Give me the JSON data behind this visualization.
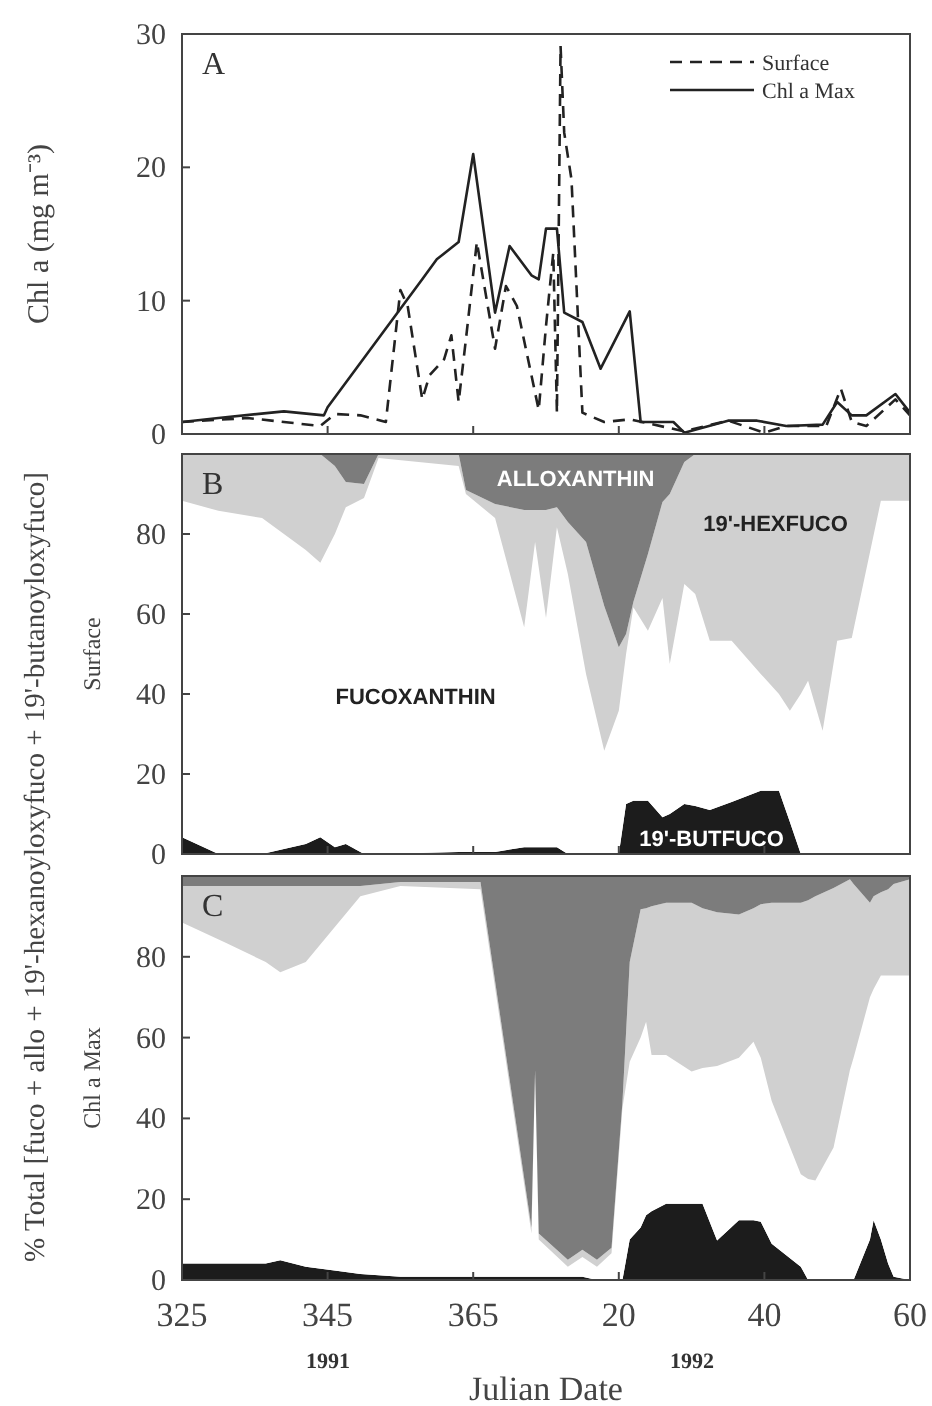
{
  "chart_data": [
    {
      "type": "line",
      "title": "A",
      "ylabel": "Chl a (mg m⁻³)",
      "xlim": [
        "1991-11-21",
        "1992-02-29"
      ],
      "xticks": [
        {
          "value": "1991-11-21",
          "label": null
        },
        {
          "value": "1991-12-11",
          "label": null
        },
        {
          "value": "1991-12-31",
          "label": null
        },
        {
          "value": "1992-01-20",
          "label": null
        },
        {
          "value": "1992-02-09",
          "label": null
        },
        {
          "value": "1992-02-29",
          "label": null
        }
      ],
      "ylim": [
        0,
        30
      ],
      "yticks": [
        0,
        10,
        20,
        30
      ],
      "tick_labels": "y",
      "legend": "top right",
      "series": [
        {
          "name": "Surface",
          "color": "#222222",
          "line_style": "dashed",
          "x": [
            "1991-11-21",
            "1991-11-30",
            "1991-12-05",
            "1991-12-10",
            "1991-12-12",
            "1991-12-15T12:00",
            "1991-12-19",
            "1991-12-21",
            "1991-12-22",
            "1991-12-24",
            "1991-12-25",
            "1991-12-27",
            "1991-12-28",
            "1991-12-29",
            "1991-12-30",
            "1991-12-31T12:00",
            "1992-01-03",
            "1992-01-04T12:00",
            "1992-01-06",
            "1992-01-09",
            "1992-01-10",
            "1992-01-11",
            "1992-01-11T12:00",
            "1992-01-12",
            "1992-01-12T12:00",
            "1992-01-13T12:00",
            "1992-01-15",
            "1992-01-18",
            "1992-01-21T12:00",
            "1992-01-29",
            "1992-02-04",
            "1992-02-09",
            "1992-02-12",
            "1992-02-17T12:00",
            "1992-02-19T12:00",
            "1992-02-21",
            "1992-02-23",
            "1992-02-27",
            "1992-02-29"
          ],
          "values": [
            0.9,
            1.2,
            0.9,
            0.6,
            1.5,
            1.4,
            0.9,
            10.8,
            9.6,
            2.6,
            4.4,
            5.6,
            7.4,
            2.4,
            7.1,
            14.4,
            6.4,
            11.1,
            9.6,
            1.8,
            8.1,
            13.6,
            1.6,
            29.1,
            22.6,
            19.1,
            1.6,
            0.9,
            1.1,
            0.2,
            1.0,
            0.1,
            0.6,
            0.6,
            3.4,
            0.9,
            0.6,
            2.6,
            1.4
          ]
        },
        {
          "name": "Chl a Max",
          "color": "#222222",
          "line_style": "solid",
          "x": [
            "1991-11-21",
            "1991-11-26",
            "1991-12-05",
            "1991-12-10T12:00",
            "1991-12-11",
            "1991-12-24",
            "1991-12-26",
            "1991-12-29",
            "1991-12-31",
            "1992-01-03",
            "1992-01-05",
            "1992-01-08",
            "1992-01-09",
            "1992-01-10",
            "1992-01-11T12:00",
            "1992-01-12T12:00",
            "1992-01-15",
            "1992-01-17T12:00",
            "1992-01-21T12:00",
            "1992-01-23",
            "1992-01-27T12:00",
            "1992-01-29",
            "1992-02-04",
            "1992-02-08",
            "1992-02-12",
            "1992-02-17",
            "1992-02-19",
            "1992-02-21",
            "1992-02-23",
            "1992-02-27",
            "1992-02-29"
          ],
          "values": [
            0.9,
            1.2,
            1.7,
            1.4,
            2.0,
            11.6,
            13.1,
            14.4,
            21,
            9.1,
            14.1,
            11.9,
            11.6,
            15.4,
            15.4,
            9.1,
            8.4,
            4.9,
            9.2,
            0.9,
            0.9,
            0.1,
            1.0,
            1.0,
            0.6,
            0.7,
            2.4,
            1.4,
            1.4,
            3.0,
            1.6
          ]
        }
      ]
    },
    {
      "type": "area",
      "stacked": true,
      "title": "B",
      "ylabel": "Surface",
      "xlim": [
        "1991-11-21",
        "1992-02-29"
      ],
      "xticks": [
        {
          "value": "1991-11-21",
          "label": null
        },
        {
          "value": "1991-12-11",
          "label": null
        },
        {
          "value": "1991-12-31",
          "label": null
        },
        {
          "value": "1992-01-20",
          "label": null
        },
        {
          "value": "1992-02-09",
          "label": null
        },
        {
          "value": "1992-02-29",
          "label": null
        }
      ],
      "ylim": [
        0,
        100
      ],
      "yticks": [
        0,
        20,
        40,
        60,
        80
      ],
      "tick_labels": "y",
      "x": [
        "1991-11-21",
        "1991-11-26",
        "1991-12-02",
        "1991-12-08",
        "1991-12-10",
        "1991-12-12",
        "1991-12-13T12:00",
        "1991-12-16",
        "1991-12-18",
        "1991-12-29",
        "1991-12-30",
        "1992-01-03",
        "1992-01-07",
        "1992-01-08T12:00",
        "1992-01-10",
        "1992-01-11T12:00",
        "1992-01-13",
        "1992-01-15T12:00",
        "1992-01-18",
        "1992-01-20",
        "1992-01-21",
        "1992-01-22",
        "1992-01-24",
        "1992-01-26",
        "1992-01-27",
        "1992-01-29",
        "1992-01-30T12:00",
        "1992-02-01T12:00",
        "1992-02-04T12:00",
        "1992-02-08T12:00",
        "1992-02-11",
        "1992-02-12T12:00",
        "1992-02-14",
        "1992-02-15",
        "1992-02-17",
        "1992-02-19",
        "1992-02-21",
        "1992-02-25",
        "1992-02-29"
      ],
      "series": [
        {
          "name": "19'-BUTFUCO",
          "color": "#1c1c1c",
          "values": [
            4.2,
            0,
            0,
            2.5,
            4.2,
            1.7,
            2.5,
            0,
            0,
            0.5,
            0.5,
            0.5,
            1.7,
            1.7,
            1.7,
            1.7,
            0,
            0,
            0,
            0,
            12.5,
            13.3,
            13.3,
            9.2,
            10,
            12.5,
            12,
            11,
            13,
            15.8,
            15.8,
            8,
            0,
            0,
            0,
            0,
            0,
            0,
            0
          ]
        },
        {
          "name": "FUCOXANTHIN",
          "color": "#ffffff",
          "values": [
            84.1,
            85.8,
            84,
            73.5,
            68.6,
            78.3,
            84.2,
            89,
            99,
            96.5,
            89.5,
            83.5,
            55,
            76.3,
            57.3,
            80,
            70,
            45,
            25.8,
            35.8,
            37.5,
            48.4,
            42.5,
            54.8,
            37.5,
            55,
            53,
            42.3,
            40.3,
            29.2,
            24.2,
            27.8,
            40,
            43.3,
            30.8,
            53.3,
            54,
            88.3,
            88.3
          ]
        },
        {
          "name": "19'-HEXFUCO",
          "color": "#d0d0d0",
          "values": [
            11.7,
            14.2,
            16,
            24,
            27.2,
            17,
            6.3,
            3.5,
            1,
            3,
            1,
            3.5,
            29.3,
            8,
            27,
            5,
            13,
            33,
            36.2,
            15.9,
            5,
            1.3,
            19.2,
            24,
            42.5,
            30.5,
            35,
            46.7,
            46.7,
            55,
            60,
            64.2,
            60,
            56.7,
            69.2,
            46.7,
            46,
            11.7,
            11.7
          ]
        },
        {
          "name": "ALLOXANTHIN",
          "color": "#7c7c7c",
          "values": [
            0,
            0,
            0,
            0,
            0,
            3,
            7,
            7.5,
            0,
            0,
            9,
            12.5,
            14,
            14,
            14,
            13.3,
            17,
            22,
            38,
            48.3,
            45,
            37,
            25,
            12,
            10,
            2,
            0,
            0,
            0,
            0,
            0,
            0,
            0,
            0,
            0,
            0,
            0,
            0,
            0
          ]
        }
      ]
    },
    {
      "type": "area",
      "stacked": true,
      "title": "C",
      "ylabel": "Chl a Max",
      "xlabel": "Julian Date",
      "xlim": [
        "1991-11-21",
        "1992-02-29"
      ],
      "xticks": [
        {
          "value": "1991-11-21",
          "label": "325"
        },
        {
          "value": "1991-12-11",
          "label": "345"
        },
        {
          "value": "1991-12-31",
          "label": "365"
        },
        {
          "value": "1992-01-20",
          "label": "20"
        },
        {
          "value": "1992-02-09",
          "label": "40"
        },
        {
          "value": "1992-02-29",
          "label": "60"
        }
      ],
      "ylim": [
        0,
        100
      ],
      "yticks": [
        0,
        20,
        40,
        60,
        80
      ],
      "annotations": [
        "% Total [fuco + allo + 19'-hexanoyloxyfuco + 19'-butanoyloxyfuco]",
        "1991",
        "1992"
      ],
      "x": [
        "1991-11-21",
        "1991-11-27",
        "1991-12-02T12:00",
        "1991-12-04T12:00",
        "1991-12-08",
        "1991-12-15T12:00",
        "1991-12-21",
        "1992-01-01",
        "1992-01-08",
        "1992-01-08T12:00",
        "1992-01-09",
        "1992-01-13",
        "1992-01-15",
        "1992-01-17",
        "1992-01-19",
        "1992-01-20T12:00",
        "1992-01-21T12:00",
        "1992-01-23",
        "1992-01-23T18:00",
        "1992-01-24T12:00",
        "1992-01-26T12:00",
        "1992-01-30",
        "1992-01-31T12:00",
        "1992-02-02T12:00",
        "1992-02-05T12:00",
        "1992-02-07T12:00",
        "1992-02-08T12:00",
        "1992-02-10",
        "1992-02-14",
        "1992-02-15",
        "1992-02-16",
        "1992-02-18T12:00",
        "1992-02-20T18:00",
        "1992-02-21T06:00",
        "1992-02-23T12:00",
        "1992-02-24",
        "1992-02-25",
        "1992-02-26",
        "1992-02-26T18:00",
        "1992-02-29"
      ],
      "series": [
        {
          "color": "#1c1c1c",
          "values": [
            4.1,
            4.1,
            4.1,
            4.9,
            3.3,
            1.5,
            0.8,
            0.8,
            0.8,
            0.8,
            0.8,
            0.8,
            0.8,
            0,
            0,
            0,
            10,
            13,
            16,
            17,
            18.9,
            18.9,
            18.9,
            9.8,
            14.8,
            14.8,
            14.4,
            9,
            3.3,
            0,
            0,
            0,
            0,
            0,
            10,
            14.8,
            10,
            4,
            0.8,
            0
          ]
        },
        {
          "color": "#ffffff",
          "values": [
            84.4,
            79.4,
            74.6,
            71.3,
            75.4,
            93.5,
            96.7,
            95.9,
            10.7,
            50,
            9.2,
            2.5,
            4.9,
            3.3,
            6.6,
            42.6,
            44,
            47,
            47.9,
            38.7,
            36.8,
            32.7,
            33.6,
            43.2,
            40.2,
            44.2,
            40.6,
            35.3,
            22.9,
            25,
            24.6,
            32.8,
            52,
            55,
            60,
            57.2,
            65.4,
            71.4,
            74.6,
            75.4
          ]
        },
        {
          "color": "#d0d0d0",
          "values": [
            9,
            14,
            18.8,
            21.3,
            18.8,
            2.5,
            1,
            1.8,
            1.5,
            1.2,
            1.5,
            1.7,
            1.8,
            1.7,
            1.4,
            1.4,
            24.7,
            31.8,
            28.1,
            36.8,
            37.7,
            41.8,
            39.5,
            38,
            35.5,
            33,
            38,
            49.1,
            67.2,
            69,
            70.4,
            64.2,
            47.2,
            43,
            23.4,
            23,
            20.6,
            21.3,
            22.6,
            23.8
          ]
        },
        {
          "color": "#7c7c7c",
          "values": [
            2.5,
            2.5,
            2.5,
            2.5,
            2.5,
            2.5,
            1.5,
            1.5,
            87,
            48,
            88.5,
            95,
            92.5,
            95,
            92,
            56,
            21.3,
            8.2,
            8,
            7.5,
            6.6,
            6.6,
            8,
            9,
            9.5,
            8,
            7,
            6.6,
            6.6,
            6,
            5,
            3,
            0.8,
            2,
            6.6,
            5,
            4,
            3.3,
            2,
            0.8
          ]
        }
      ]
    }
  ]
}
